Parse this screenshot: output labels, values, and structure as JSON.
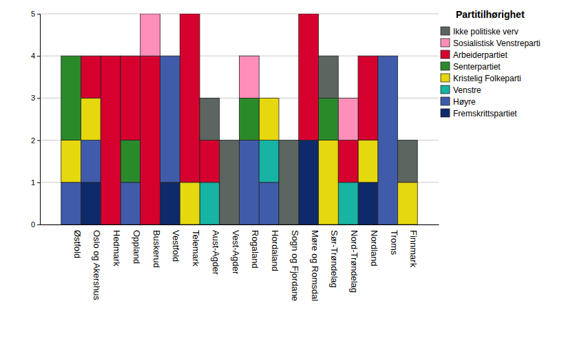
{
  "chart_data": {
    "type": "bar",
    "stacked": true,
    "grid": true,
    "legend": "right",
    "legend_title": "Partitilhørighet",
    "categories": [
      "Østfold",
      "Oslo og Akershus",
      "Hedmark",
      "Oppland",
      "Buskerud",
      "Vestfold",
      "Telemark",
      "Aust-Agder",
      "Vest-Agder",
      "Rogaland",
      "Hordaland",
      "Sogn og Fjordane",
      "Møre og Romsdal",
      "Sør-Trøndelag",
      "Nord-Trøndelag",
      "Nordland",
      "Troms",
      "Finnmark"
    ],
    "ylim": [
      0,
      5
    ],
    "yticks": [
      0,
      1,
      2,
      3,
      4,
      5
    ],
    "series": [
      {
        "name": "Ikke politiske verv",
        "color": "#5c6560",
        "values": [
          0,
          0,
          0,
          0,
          0,
          0,
          0,
          1,
          2,
          0,
          0,
          2,
          0,
          1,
          0,
          0,
          0,
          1
        ]
      },
      {
        "name": "Sosialistisk Venstreparti",
        "color": "#ff8fb9",
        "values": [
          0,
          0,
          0,
          0,
          1,
          0,
          0,
          0,
          0,
          1,
          0,
          0,
          0,
          0,
          1,
          0,
          0,
          0
        ]
      },
      {
        "name": "Arbeiderpartiet",
        "color": "#d6002f",
        "values": [
          0,
          1,
          4,
          2,
          4,
          0,
          4,
          1,
          0,
          0,
          0,
          0,
          3,
          0,
          1,
          2,
          0,
          0
        ]
      },
      {
        "name": "Senterpartiet",
        "color": "#2a8a2a",
        "values": [
          2,
          0,
          0,
          1,
          0,
          0,
          0,
          0,
          0,
          1,
          0,
          0,
          0,
          1,
          0,
          0,
          0,
          0
        ]
      },
      {
        "name": "Kristelig Folkeparti",
        "color": "#e6d80e",
        "values": [
          1,
          1,
          0,
          0,
          0,
          0,
          1,
          0,
          0,
          0,
          1,
          0,
          0,
          2,
          0,
          1,
          0,
          1
        ]
      },
      {
        "name": "Venstre",
        "color": "#17b3a3",
        "values": [
          0,
          0,
          0,
          0,
          0,
          0,
          0,
          1,
          0,
          0,
          1,
          0,
          0,
          0,
          1,
          0,
          0,
          0
        ]
      },
      {
        "name": "Høyre",
        "color": "#3f5baa",
        "values": [
          1,
          1,
          0,
          1,
          0,
          3,
          0,
          0,
          0,
          2,
          1,
          0,
          0,
          0,
          0,
          0,
          4,
          0
        ]
      },
      {
        "name": "Fremskrittspartiet",
        "color": "#0e2a6b",
        "values": [
          0,
          1,
          0,
          0,
          0,
          1,
          0,
          0,
          0,
          0,
          0,
          0,
          2,
          0,
          0,
          1,
          0,
          0
        ]
      }
    ]
  }
}
